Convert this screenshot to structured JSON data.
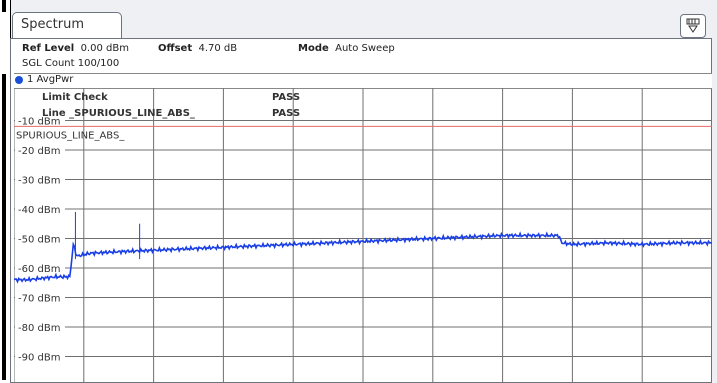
{
  "tab": {
    "title": "Spectrum"
  },
  "header": {
    "ref_level_label": "Ref Level",
    "ref_level_value": "0.00 dBm",
    "offset_label": "Offset",
    "offset_value": "4.70 dB",
    "mode_label": "Mode",
    "mode_value": "Auto Sweep",
    "sgl_count": "SGL Count 100/100"
  },
  "trace": {
    "label": "1 AvgPwr"
  },
  "limit_check": {
    "title": "Limit Check",
    "title_status": "PASS",
    "line_label": "Line _SPURIOUS_LINE_ABS_",
    "line_status": "PASS",
    "limit_line_name": "SPURIOUS_LINE_ABS_"
  },
  "chart_data": {
    "type": "line",
    "ylabel_unit": "dBm",
    "y_tick_labels": [
      "-10 dBm",
      "-20 dBm",
      "-30 dBm",
      "-40 dBm",
      "-50 dBm",
      "-60 dBm",
      "-70 dBm",
      "-80 dBm",
      "-90 dBm"
    ],
    "ylim": [
      -99,
      1
    ],
    "grid": true,
    "limit_line": -12,
    "x_divisions": 10,
    "series": [
      {
        "x": [
          0,
          0.2,
          0.4,
          0.6,
          0.8,
          0.85,
          0.9,
          1.0,
          1.1,
          1.5,
          2,
          2.5,
          3,
          3.5,
          4,
          4.5,
          5,
          5.5,
          6,
          6.5,
          7,
          7.5,
          7.8,
          7.85,
          8,
          8.5,
          9,
          9.5,
          10
        ],
        "values": [
          -64,
          -64,
          -63.5,
          -63,
          -63,
          -52,
          -56,
          -55.5,
          -55,
          -54.5,
          -54,
          -53.5,
          -53,
          -52.5,
          -52,
          -51.5,
          -51,
          -50.5,
          -50,
          -49.5,
          -49,
          -49,
          -49,
          -51.5,
          -52,
          -51.5,
          -52,
          -51.5,
          -51.5
        ],
        "spikes": [
          {
            "x": 0.88,
            "value": -41
          },
          {
            "x": 1.8,
            "value": -45
          }
        ]
      }
    ]
  },
  "colors": {
    "trace": "#1a3fe6",
    "limit": "#e66a6a",
    "pass": "#22bb22",
    "limit_text": "#1f7ae0",
    "limit_name": "#e53030"
  }
}
